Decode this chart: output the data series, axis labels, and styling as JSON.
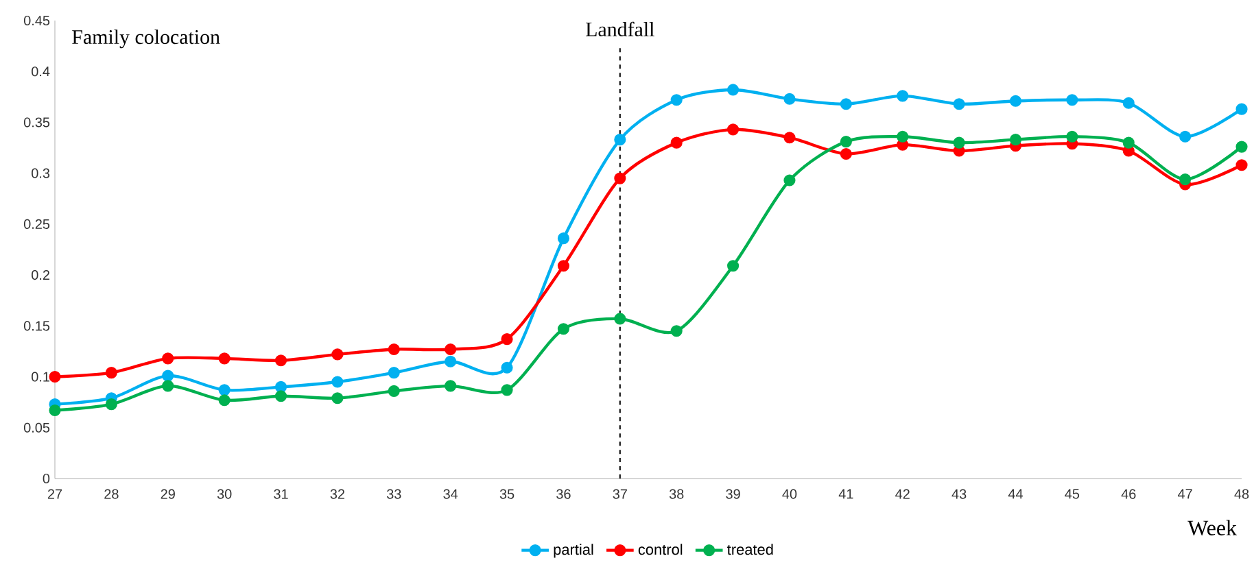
{
  "chart_data": {
    "type": "line",
    "xlabel": "Week",
    "annotations": [
      "Family colocation"
    ],
    "x": [
      27,
      28,
      29,
      30,
      31,
      32,
      33,
      34,
      35,
      36,
      37,
      38,
      39,
      40,
      41,
      42,
      43,
      44,
      45,
      46,
      47,
      48
    ],
    "xlim": [
      27,
      48
    ],
    "xticks": [
      27,
      28,
      29,
      30,
      31,
      32,
      33,
      34,
      35,
      36,
      37,
      38,
      39,
      40,
      41,
      42,
      43,
      44,
      45,
      46,
      47,
      48
    ],
    "ylim": [
      0,
      0.45
    ],
    "yticks": [
      0,
      0.05,
      0.1,
      0.15,
      0.2,
      0.25,
      0.3,
      0.35,
      0.4,
      0.45
    ],
    "grid": false,
    "legend": "bottom",
    "marker": "circle",
    "line_style": "solid",
    "ref_lines": [
      {
        "axis": "x",
        "value": 37,
        "label": "Landfall",
        "color": "#000000",
        "line_style": "dashed"
      }
    ],
    "series": [
      {
        "name": "partial",
        "color": "#00b0f0",
        "values": [
          0.073,
          0.079,
          0.101,
          0.087,
          0.09,
          0.095,
          0.104,
          0.115,
          0.109,
          0.236,
          0.333,
          0.372,
          0.382,
          0.373,
          0.368,
          0.376,
          0.368,
          0.371,
          0.372,
          0.369,
          0.336,
          0.363
        ]
      },
      {
        "name": "control",
        "color": "#ff0000",
        "values": [
          0.1,
          0.104,
          0.118,
          0.118,
          0.116,
          0.122,
          0.127,
          0.127,
          0.137,
          0.209,
          0.295,
          0.33,
          0.343,
          0.335,
          0.319,
          0.328,
          0.322,
          0.327,
          0.329,
          0.322,
          0.289,
          0.308
        ]
      },
      {
        "name": "treated",
        "color": "#00b050",
        "values": [
          0.067,
          0.073,
          0.091,
          0.077,
          0.081,
          0.079,
          0.086,
          0.091,
          0.087,
          0.147,
          0.157,
          0.145,
          0.209,
          0.293,
          0.331,
          0.336,
          0.33,
          0.333,
          0.336,
          0.33,
          0.294,
          0.326
        ]
      }
    ]
  }
}
